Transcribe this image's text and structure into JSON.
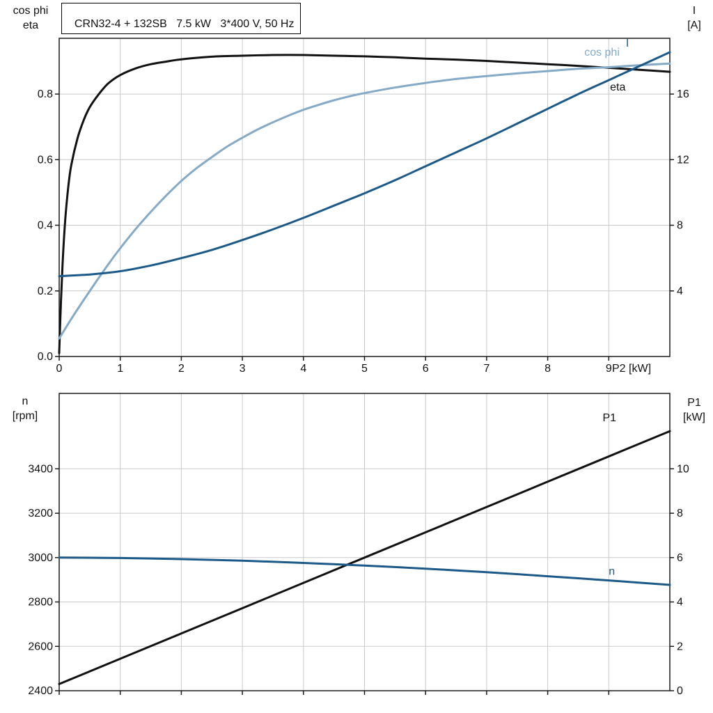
{
  "title": "CRN32-4 + 132SB   7.5 kW   3*400 V, 50 Hz",
  "colors": {
    "black": "#111111",
    "dark_blue": "#1b5a88",
    "light_blue": "#85aac8",
    "grid": "#c9c9c9",
    "axis": "#1a1a1a",
    "text": "#111111"
  },
  "chart_data": [
    {
      "type": "line",
      "title": "CRN32-4 + 132SB   7.5 kW   3*400 V, 50 Hz",
      "x_axis": {
        "label": "P2 [kW]",
        "min": 0,
        "max": 10,
        "tick_values": [
          0,
          1,
          2,
          3,
          4,
          5,
          6,
          7,
          8,
          9
        ],
        "tick_labels": [
          "0",
          "1",
          "2",
          "3",
          "4",
          "5",
          "6",
          "7",
          "8",
          "9"
        ]
      },
      "y_left": {
        "title_lines": [
          "cos phi",
          "eta"
        ],
        "min": 0,
        "max": 0.97,
        "tick_values": [
          0,
          0.2,
          0.4,
          0.6,
          0.8
        ],
        "tick_labels": [
          "0.0",
          "0.2",
          "0.4",
          "0.6",
          "0.8"
        ]
      },
      "y_right": {
        "title_lines": [
          "I",
          "[A]"
        ],
        "min": 0,
        "max": 19.4,
        "tick_values": [
          4,
          8,
          12,
          16
        ],
        "tick_labels": [
          "4",
          "8",
          "12",
          "16"
        ]
      },
      "series": [
        {
          "name": "eta",
          "axis": "left",
          "color_key": "black",
          "label_at": {
            "x": 9.02,
            "y": 0.811
          },
          "points": [
            [
              0,
              0.01
            ],
            [
              0.03,
              0.17
            ],
            [
              0.06,
              0.3
            ],
            [
              0.1,
              0.42
            ],
            [
              0.15,
              0.52
            ],
            [
              0.2,
              0.585
            ],
            [
              0.3,
              0.665
            ],
            [
              0.4,
              0.72
            ],
            [
              0.5,
              0.76
            ],
            [
              0.65,
              0.8
            ],
            [
              0.8,
              0.832
            ],
            [
              1,
              0.858
            ],
            [
              1.25,
              0.878
            ],
            [
              1.5,
              0.891
            ],
            [
              1.75,
              0.899
            ],
            [
              2,
              0.906
            ],
            [
              2.5,
              0.914
            ],
            [
              3,
              0.917
            ],
            [
              3.5,
              0.919
            ],
            [
              4,
              0.919
            ],
            [
              4.5,
              0.917
            ],
            [
              5,
              0.915
            ],
            [
              5.5,
              0.912
            ],
            [
              6,
              0.908
            ],
            [
              6.5,
              0.905
            ],
            [
              7,
              0.901
            ],
            [
              7.5,
              0.896
            ],
            [
              8,
              0.891
            ],
            [
              8.5,
              0.886
            ],
            [
              9,
              0.88
            ],
            [
              9.5,
              0.874
            ],
            [
              10,
              0.868
            ]
          ]
        },
        {
          "name": "cos phi",
          "axis": "left",
          "color_key": "light_blue",
          "label_at": {
            "x": 8.6,
            "y": 0.917
          },
          "points": [
            [
              0,
              0.055
            ],
            [
              0.2,
              0.115
            ],
            [
              0.4,
              0.172
            ],
            [
              0.6,
              0.227
            ],
            [
              0.8,
              0.28
            ],
            [
              1,
              0.33
            ],
            [
              1.25,
              0.388
            ],
            [
              1.5,
              0.441
            ],
            [
              1.75,
              0.49
            ],
            [
              2,
              0.535
            ],
            [
              2.25,
              0.574
            ],
            [
              2.5,
              0.608
            ],
            [
              2.75,
              0.64
            ],
            [
              3,
              0.667
            ],
            [
              3.25,
              0.692
            ],
            [
              3.5,
              0.714
            ],
            [
              3.75,
              0.734
            ],
            [
              4,
              0.752
            ],
            [
              4.25,
              0.767
            ],
            [
              4.5,
              0.781
            ],
            [
              4.75,
              0.793
            ],
            [
              5,
              0.803
            ],
            [
              5.5,
              0.82
            ],
            [
              6,
              0.834
            ],
            [
              6.5,
              0.846
            ],
            [
              7,
              0.855
            ],
            [
              7.5,
              0.863
            ],
            [
              8,
              0.87
            ],
            [
              8.5,
              0.877
            ],
            [
              9,
              0.882
            ],
            [
              9.5,
              0.888
            ],
            [
              10,
              0.893
            ]
          ]
        },
        {
          "name": "I",
          "axis": "right",
          "color_key": "dark_blue",
          "label_at": {
            "x": 9.28,
            "y": 18.9
          },
          "points": [
            [
              0,
              4.9
            ],
            [
              0.5,
              5.0
            ],
            [
              1,
              5.2
            ],
            [
              1.5,
              5.55
            ],
            [
              2,
              6.0
            ],
            [
              2.5,
              6.5
            ],
            [
              3,
              7.1
            ],
            [
              3.5,
              7.75
            ],
            [
              4,
              8.45
            ],
            [
              4.5,
              9.2
            ],
            [
              5,
              9.95
            ],
            [
              5.5,
              10.75
            ],
            [
              6,
              11.6
            ],
            [
              6.5,
              12.45
            ],
            [
              7,
              13.3
            ],
            [
              7.5,
              14.2
            ],
            [
              8,
              15.1
            ],
            [
              8.5,
              16.0
            ],
            [
              9,
              16.85
            ],
            [
              9.5,
              17.7
            ],
            [
              10,
              18.55
            ]
          ]
        }
      ]
    },
    {
      "type": "line",
      "x_axis": {
        "label": "",
        "min": 0,
        "max": 10,
        "tick_values": [
          0,
          1,
          2,
          3,
          4,
          5,
          6,
          7,
          8,
          9
        ],
        "tick_labels": []
      },
      "y_left": {
        "title_lines": [
          "n",
          "[rpm]"
        ],
        "min": 2400,
        "max": 3740,
        "tick_values": [
          2400,
          2600,
          2800,
          3000,
          3200,
          3400
        ],
        "tick_labels": [
          "2400",
          "2600",
          "2800",
          "3000",
          "3200",
          "3400"
        ]
      },
      "y_right": {
        "title_lines": [
          "P1",
          "[kW]"
        ],
        "min": 0,
        "max": 13.4,
        "tick_values": [
          0,
          2,
          4,
          6,
          8,
          10
        ],
        "tick_labels": [
          "0",
          "2",
          "4",
          "6",
          "8",
          "10"
        ]
      },
      "series": [
        {
          "name": "P1",
          "axis": "right",
          "color_key": "black",
          "label_at": {
            "x": 8.9,
            "y": 12.15
          },
          "points": [
            [
              0,
              0.3
            ],
            [
              2,
              2.58
            ],
            [
              4,
              4.86
            ],
            [
              6,
              7.14
            ],
            [
              8,
              9.42
            ],
            [
              10,
              11.7
            ]
          ]
        },
        {
          "name": "n",
          "axis": "left",
          "color_key": "dark_blue",
          "label_at": {
            "x": 9.0,
            "y": 2922
          },
          "points": [
            [
              0,
              3000
            ],
            [
              1,
              2998
            ],
            [
              2,
              2993
            ],
            [
              3,
              2986
            ],
            [
              4,
              2976
            ],
            [
              5,
              2964
            ],
            [
              6,
              2950
            ],
            [
              7,
              2934
            ],
            [
              8,
              2916
            ],
            [
              9,
              2897
            ],
            [
              10,
              2877
            ]
          ]
        }
      ]
    }
  ]
}
